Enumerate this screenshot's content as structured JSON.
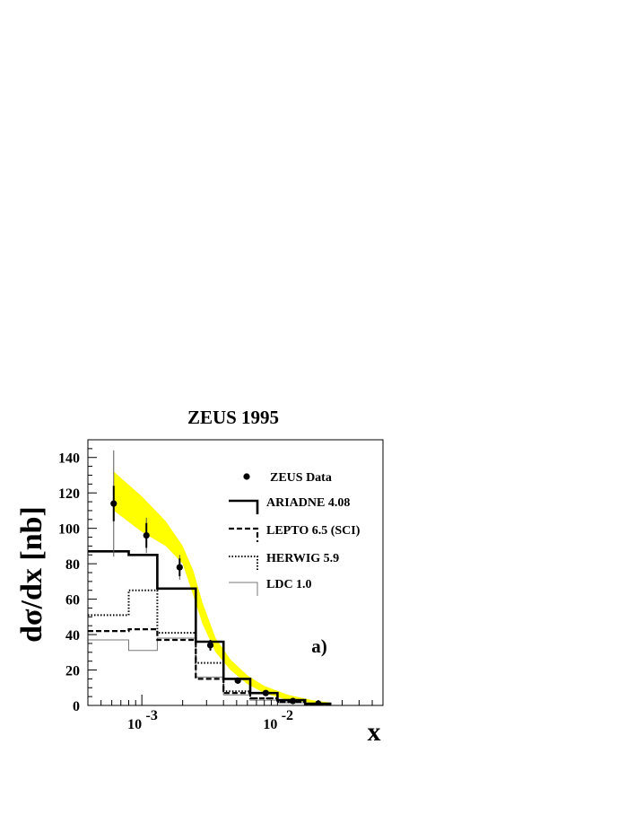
{
  "chart_data": {
    "type": "histogram",
    "title": "ZEUS 1995",
    "xlabel": "x",
    "ylabel": "dσ/dx [nb]",
    "xscale": "log",
    "xlim": [
      0.0004,
      0.06
    ],
    "ylim": [
      0,
      150
    ],
    "grid": false,
    "legend_position": "top-right",
    "annotation": "a)",
    "yticks": [
      {
        "value": 0,
        "label": "0"
      },
      {
        "value": 20,
        "label": "20"
      },
      {
        "value": 40,
        "label": "40"
      },
      {
        "value": 60,
        "label": "60"
      },
      {
        "value": 80,
        "label": "80"
      },
      {
        "value": 100,
        "label": "100"
      },
      {
        "value": 120,
        "label": "120"
      },
      {
        "value": 140,
        "label": "140"
      }
    ],
    "xticks": [
      {
        "value": 0.001,
        "base": "10",
        "exp": "-3"
      },
      {
        "value": 0.01,
        "base": "10",
        "exp": "-2"
      }
    ],
    "bin_edges": [
      0.0004,
      0.0008,
      0.0013,
      0.0025,
      0.004,
      0.0063,
      0.01,
      0.016,
      0.025,
      0.06
    ],
    "data": {
      "name": "ZEUS Data",
      "points": [
        {
          "x": 0.00062,
          "y": 114,
          "err": 10,
          "syst": 30
        },
        {
          "x": 0.00108,
          "y": 96,
          "err": 7,
          "syst": 10
        },
        {
          "x": 0.0019,
          "y": 78,
          "err": 5,
          "syst": 7
        },
        {
          "x": 0.0032,
          "y": 34,
          "err": 3,
          "syst": 3
        },
        {
          "x": 0.0051,
          "y": 14,
          "err": 1.5,
          "syst": 1.5
        },
        {
          "x": 0.0082,
          "y": 7,
          "err": 1,
          "syst": 1
        },
        {
          "x": 0.013,
          "y": 2.5,
          "err": 0.5,
          "syst": 0.5
        },
        {
          "x": 0.02,
          "y": 1,
          "err": 0.3,
          "syst": 0.3
        }
      ]
    },
    "band": {
      "upper": [
        [
          0.00062,
          132
        ],
        [
          0.001,
          118
        ],
        [
          0.0015,
          104
        ],
        [
          0.002,
          90
        ],
        [
          0.0024,
          76
        ],
        [
          0.0028,
          58
        ],
        [
          0.0035,
          38
        ],
        [
          0.0045,
          26
        ],
        [
          0.006,
          17
        ],
        [
          0.008,
          11
        ],
        [
          0.012,
          6
        ],
        [
          0.018,
          3
        ],
        [
          0.025,
          1.5
        ]
      ],
      "lower": [
        [
          0.00062,
          110
        ],
        [
          0.001,
          98
        ],
        [
          0.0015,
          90
        ],
        [
          0.002,
          80
        ],
        [
          0.0024,
          62
        ],
        [
          0.0028,
          46
        ],
        [
          0.0035,
          30
        ],
        [
          0.0045,
          20
        ],
        [
          0.006,
          12
        ],
        [
          0.008,
          7
        ],
        [
          0.012,
          3
        ],
        [
          0.018,
          1.5
        ],
        [
          0.025,
          0.5
        ]
      ]
    },
    "series": [
      {
        "name": "ARIADNE 4.08",
        "style": "solid-thick",
        "values": [
          87,
          85,
          66,
          36,
          15,
          7,
          3,
          1
        ]
      },
      {
        "name": "LEPTO 6.5 (SCI)",
        "style": "dashed",
        "values": [
          42,
          43,
          37,
          15,
          7,
          4,
          2,
          0.5
        ]
      },
      {
        "name": "HERWIG 5.9",
        "style": "dotted",
        "values": [
          51,
          65,
          41,
          24,
          8,
          4,
          2,
          0.5
        ]
      },
      {
        "name": "LDC 1.0",
        "style": "solid-thin",
        "values": [
          37,
          31,
          38,
          16,
          6,
          3,
          1.5,
          0.5
        ]
      }
    ],
    "colors": {
      "band": "#ffff00",
      "axis": "#000000"
    }
  }
}
